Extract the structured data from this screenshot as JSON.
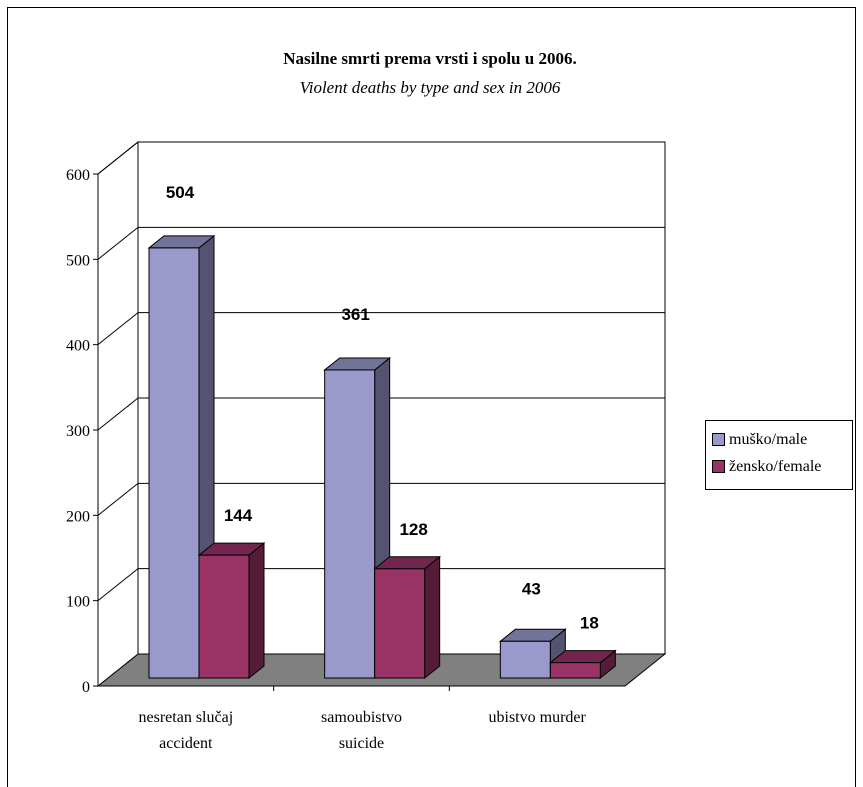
{
  "chart_data": {
    "type": "bar",
    "title": "Nasilne smrti prema vrsti i spolu u 2006.",
    "subtitle": "Violent deaths by type and sex in 2006",
    "categories": [
      [
        "nesretan slučaj",
        "accident"
      ],
      [
        "samoubistvo",
        "suicide"
      ],
      [
        "ubistvo murder"
      ]
    ],
    "series": [
      {
        "name": "muško/male",
        "values": [
          504,
          361,
          43
        ],
        "color": "#9999CC"
      },
      {
        "name": "žensko/female",
        "values": [
          144,
          128,
          18
        ],
        "color": "#993366"
      }
    ],
    "ylim": [
      0,
      600
    ],
    "yticks": [
      "0",
      "100",
      "200",
      "300",
      "400",
      "500",
      "600"
    ],
    "grid": true,
    "legend_position": "right",
    "floor_color": "#808080"
  }
}
